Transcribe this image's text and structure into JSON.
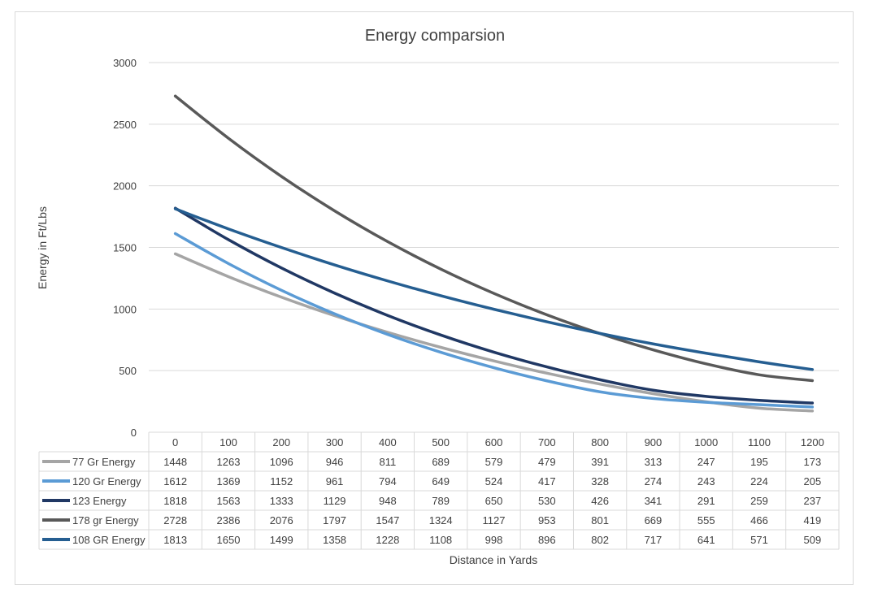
{
  "chart_data": {
    "type": "line",
    "title": "Energy comparsion",
    "xlabel": "Distance in Yards",
    "ylabel": "Energy in Ft/Lbs",
    "ylim": [
      0,
      3000
    ],
    "yticks": [
      0,
      500,
      1000,
      1500,
      2000,
      2500,
      3000
    ],
    "grid": true,
    "legend": "data-table-left",
    "categories": [
      "0",
      "100",
      "200",
      "300",
      "400",
      "500",
      "600",
      "700",
      "800",
      "900",
      "1000",
      "1100",
      "1200"
    ],
    "series": [
      {
        "name": "77 Gr Energy",
        "color": "#a5a5a5",
        "values": [
          1448,
          1263,
          1096,
          946,
          811,
          689,
          579,
          479,
          391,
          313,
          247,
          195,
          173
        ]
      },
      {
        "name": "120 Gr Energy",
        "color": "#5b9bd5",
        "values": [
          1612,
          1369,
          1152,
          961,
          794,
          649,
          524,
          417,
          328,
          274,
          243,
          224,
          205
        ]
      },
      {
        "name": "123 Energy",
        "color": "#203864",
        "values": [
          1818,
          1563,
          1333,
          1129,
          948,
          789,
          650,
          530,
          426,
          341,
          291,
          259,
          237
        ]
      },
      {
        "name": "178 gr Energy",
        "color": "#595959",
        "values": [
          2728,
          2386,
          2076,
          1797,
          1547,
          1324,
          1127,
          953,
          801,
          669,
          555,
          466,
          419
        ]
      },
      {
        "name": "108 GR Energy",
        "color": "#255e91",
        "values": [
          1813,
          1650,
          1499,
          1358,
          1228,
          1108,
          998,
          896,
          802,
          717,
          641,
          571,
          509
        ]
      }
    ]
  }
}
